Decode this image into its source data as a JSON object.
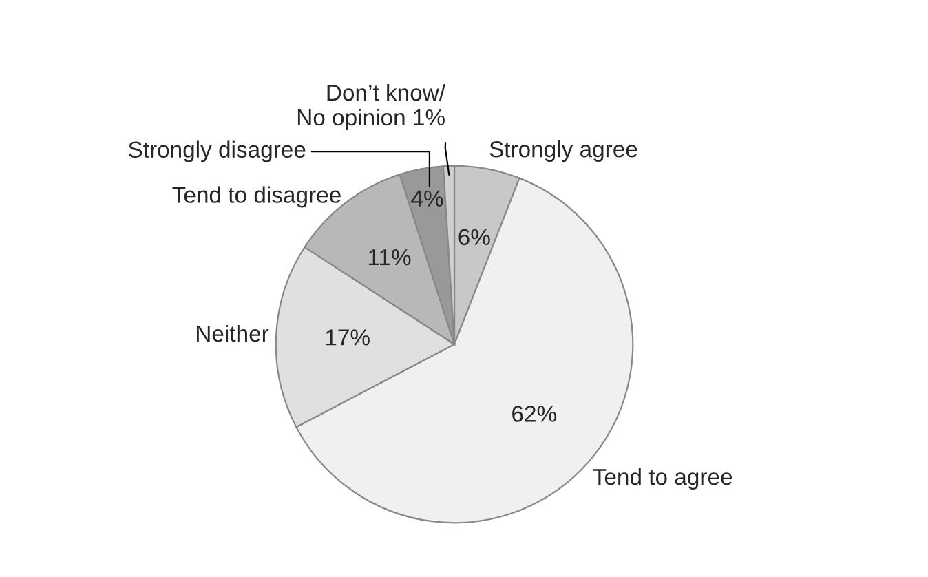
{
  "chart_data": {
    "type": "pie",
    "categories": [
      "Strongly agree",
      "Tend to agree",
      "Neither",
      "Tend to disagree",
      "Strongly disagree",
      "Don’t know/\nNo opinion 1%"
    ],
    "values": [
      6,
      62,
      17,
      11,
      4,
      1
    ],
    "value_labels": [
      "6%",
      "62%",
      "17%",
      "11%",
      "4%",
      null
    ],
    "colors": [
      "#c8c8c8",
      "#f0f0f0",
      "#e0e0e0",
      "#b8b8b8",
      "#999999",
      "#d0d0d0"
    ],
    "legend": false
  }
}
